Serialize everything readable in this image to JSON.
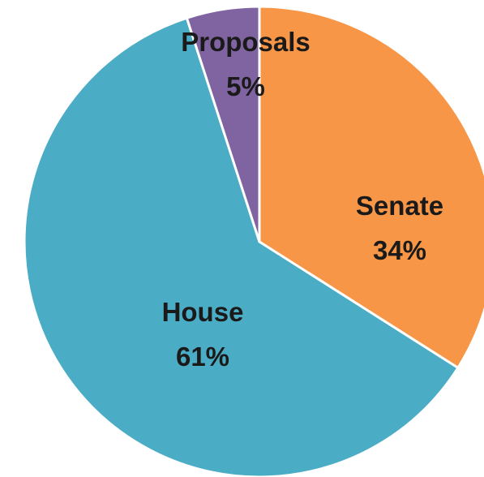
{
  "chart_data": {
    "type": "pie",
    "title": "",
    "legend": "none",
    "start_angle_deg": 0,
    "direction": "clockwise",
    "slices": [
      {
        "label": "Senate",
        "value": 34,
        "value_label": "34%",
        "color": "#F79646"
      },
      {
        "label": "House",
        "value": 61,
        "value_label": "61%",
        "color": "#4BACC6"
      },
      {
        "label": "Proposals",
        "value": 5,
        "value_label": "5%",
        "color": "#8064A2"
      }
    ]
  }
}
